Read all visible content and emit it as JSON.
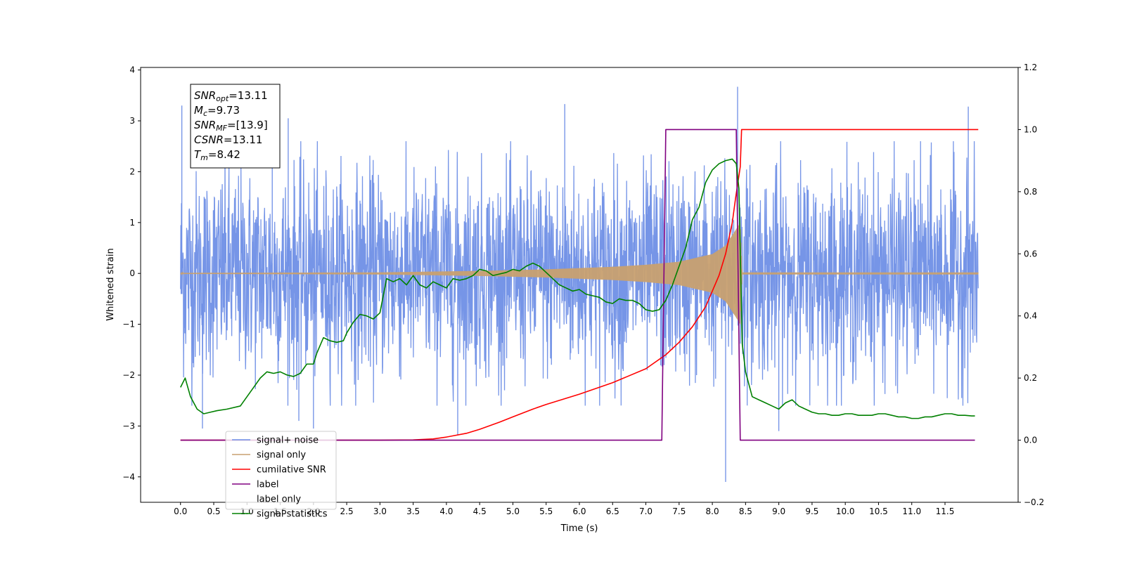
{
  "chart_data": {
    "type": "line",
    "xlabel": "Time (s)",
    "ylabel_left": "Whitened strain",
    "ylabel_right": "",
    "xlim": [
      -0.6,
      12.6
    ],
    "ylim_left": [
      -4.5,
      4.05
    ],
    "ylim_right": [
      -0.2,
      1.2
    ],
    "x_ticks": [
      0.0,
      0.5,
      1.0,
      1.5,
      2.0,
      2.5,
      3.0,
      3.5,
      4.0,
      4.5,
      5.0,
      5.5,
      6.0,
      6.5,
      7.0,
      7.5,
      8.0,
      8.5,
      9.0,
      9.5,
      10.0,
      10.5,
      11.0,
      11.5
    ],
    "x_tick_labels": [
      "0.0",
      "0.5",
      "1.0",
      "1.5",
      "2.0",
      "2.5",
      "3.0",
      "3.5",
      "4.0",
      "4.5",
      "5.0",
      "5.5",
      "6.0",
      "6.5",
      "7.0",
      "7.5",
      "8.0",
      "8.5",
      "9.0",
      "9.5",
      "10.0",
      "10.5",
      "11.0",
      "11.5"
    ],
    "y_left_ticks": [
      4,
      3,
      2,
      1,
      0,
      -1,
      -2,
      -3,
      -4
    ],
    "y_left_tick_labels": [
      "4",
      "3",
      "2",
      "1",
      "0",
      "−1",
      "−2",
      "−3",
      "−4"
    ],
    "y_right_ticks": [
      1.2,
      1.0,
      0.8,
      0.6,
      0.4,
      0.2,
      0.0,
      -0.2
    ],
    "y_right_tick_labels": [
      "1.2",
      "1.0",
      "0.8",
      "0.6",
      "0.4",
      "0.2",
      "0.0",
      "−0.2"
    ],
    "grid": false,
    "legend_position": "lower-left",
    "annotation": {
      "lines": [
        {
          "sym": "SNR",
          "sub": "opt",
          "value": "=13.11"
        },
        {
          "sym": "M",
          "sub": "c",
          "value": "=9.73"
        },
        {
          "sym": "SNR",
          "sub": "MF",
          "value": "=[13.9]"
        },
        {
          "sym": "CSNR",
          "sub": "",
          "value": "=13.11"
        },
        {
          "sym": "T",
          "sub": "m",
          "value": "=8.42"
        }
      ]
    },
    "series": [
      {
        "name": "signal+ noise",
        "axis": "left",
        "color": "#6f8fe6",
        "description_type": "noise-band",
        "x_range": [
          0.0,
          12.0
        ],
        "typical_envelope": [
          -1.6,
          1.6
        ],
        "peaks": [
          {
            "x": 0.02,
            "y": 3.3
          },
          {
            "x": 0.33,
            "y": -3.05
          },
          {
            "x": 1.38,
            "y": 3.06
          },
          {
            "x": 1.62,
            "y": 3.05
          },
          {
            "x": 1.78,
            "y": -2.9
          },
          {
            "x": 2.0,
            "y": -3.05
          },
          {
            "x": 4.17,
            "y": -3.17
          },
          {
            "x": 5.78,
            "y": 3.33
          },
          {
            "x": 8.2,
            "y": -4.1
          },
          {
            "x": 8.38,
            "y": 3.67
          },
          {
            "x": 9.0,
            "y": -3.1
          },
          {
            "x": 11.85,
            "y": 3.28
          }
        ]
      },
      {
        "name": "signal only",
        "axis": "left",
        "color": "#c8a070",
        "description_type": "chirp",
        "x_range": [
          0.0,
          12.0
        ],
        "merger_time": 8.42,
        "amplitude": [
          {
            "x": 0.0,
            "y": 0.01
          },
          {
            "x": 3.0,
            "y": 0.02
          },
          {
            "x": 4.5,
            "y": 0.05
          },
          {
            "x": 5.5,
            "y": 0.08
          },
          {
            "x": 6.5,
            "y": 0.13
          },
          {
            "x": 7.0,
            "y": 0.17
          },
          {
            "x": 7.5,
            "y": 0.23
          },
          {
            "x": 8.0,
            "y": 0.38
          },
          {
            "x": 8.2,
            "y": 0.55
          },
          {
            "x": 8.35,
            "y": 0.85
          },
          {
            "x": 8.42,
            "y": 1.0
          },
          {
            "x": 8.45,
            "y": 0.02
          },
          {
            "x": 12.0,
            "y": 0.02
          }
        ]
      },
      {
        "name": "cumilative SNR",
        "axis": "right",
        "color": "#ff0000",
        "x": [
          0.0,
          3.0,
          3.5,
          3.8,
          4.0,
          4.3,
          4.5,
          4.8,
          5.0,
          5.3,
          5.5,
          6.0,
          6.5,
          7.0,
          7.3,
          7.5,
          7.7,
          7.9,
          8.0,
          8.1,
          8.2,
          8.3,
          8.35,
          8.42,
          8.44,
          12.0
        ],
        "y": [
          0.0,
          0.0,
          0.001,
          0.004,
          0.01,
          0.022,
          0.035,
          0.058,
          0.075,
          0.1,
          0.115,
          0.148,
          0.185,
          0.23,
          0.275,
          0.315,
          0.365,
          0.43,
          0.48,
          0.53,
          0.6,
          0.7,
          0.78,
          0.88,
          1.0,
          1.0
        ]
      },
      {
        "name": "label",
        "axis": "right",
        "color": "#800080",
        "x": [
          0.0,
          7.24,
          7.3,
          8.36,
          8.42,
          11.95
        ],
        "y": [
          0.0,
          0.0,
          1.0,
          1.0,
          0.0,
          0.0
        ]
      },
      {
        "name": "label only",
        "axis": "right",
        "color": "#c8c8c8",
        "hidden": true,
        "x": [],
        "y": []
      },
      {
        "name": "signal statistics",
        "axis": "right",
        "color": "#008000",
        "x": [
          0.0,
          0.07,
          0.15,
          0.25,
          0.35,
          0.45,
          0.55,
          0.7,
          0.9,
          1.0,
          1.1,
          1.2,
          1.3,
          1.4,
          1.5,
          1.6,
          1.7,
          1.8,
          1.9,
          2.0,
          2.05,
          2.15,
          2.25,
          2.35,
          2.45,
          2.5,
          2.6,
          2.7,
          2.8,
          2.9,
          3.0,
          3.1,
          3.2,
          3.3,
          3.4,
          3.5,
          3.6,
          3.7,
          3.8,
          3.9,
          4.0,
          4.1,
          4.2,
          4.3,
          4.4,
          4.5,
          4.6,
          4.7,
          4.8,
          4.9,
          5.0,
          5.1,
          5.2,
          5.3,
          5.4,
          5.5,
          5.6,
          5.7,
          5.8,
          5.9,
          6.0,
          6.1,
          6.2,
          6.3,
          6.4,
          6.5,
          6.6,
          6.7,
          6.8,
          6.9,
          7.0,
          7.1,
          7.2,
          7.3,
          7.4,
          7.5,
          7.6,
          7.7,
          7.8,
          7.9,
          8.0,
          8.1,
          8.2,
          8.3,
          8.36,
          8.4,
          8.45,
          8.5,
          8.6,
          8.7,
          8.8,
          8.9,
          9.0,
          9.1,
          9.2,
          9.3,
          9.4,
          9.5,
          9.6,
          9.7,
          9.8,
          9.9,
          10.0,
          10.1,
          10.2,
          10.3,
          10.4,
          10.5,
          10.6,
          10.7,
          10.8,
          10.9,
          11.0,
          11.1,
          11.2,
          11.3,
          11.4,
          11.5,
          11.6,
          11.7,
          11.8,
          11.9,
          11.95
        ],
        "y": [
          0.17,
          0.2,
          0.14,
          0.1,
          0.085,
          0.09,
          0.095,
          0.1,
          0.11,
          0.14,
          0.17,
          0.2,
          0.22,
          0.215,
          0.22,
          0.21,
          0.205,
          0.215,
          0.245,
          0.245,
          0.28,
          0.33,
          0.32,
          0.315,
          0.32,
          0.345,
          0.38,
          0.405,
          0.4,
          0.39,
          0.41,
          0.52,
          0.51,
          0.52,
          0.5,
          0.53,
          0.5,
          0.49,
          0.51,
          0.5,
          0.49,
          0.52,
          0.515,
          0.52,
          0.53,
          0.55,
          0.545,
          0.53,
          0.535,
          0.54,
          0.55,
          0.545,
          0.56,
          0.57,
          0.56,
          0.54,
          0.52,
          0.5,
          0.49,
          0.48,
          0.485,
          0.47,
          0.465,
          0.46,
          0.445,
          0.44,
          0.455,
          0.45,
          0.45,
          0.44,
          0.42,
          0.415,
          0.42,
          0.45,
          0.5,
          0.56,
          0.62,
          0.71,
          0.75,
          0.83,
          0.87,
          0.89,
          0.9,
          0.905,
          0.89,
          0.81,
          0.31,
          0.22,
          0.14,
          0.13,
          0.12,
          0.11,
          0.1,
          0.12,
          0.13,
          0.11,
          0.1,
          0.09,
          0.085,
          0.085,
          0.08,
          0.08,
          0.085,
          0.085,
          0.08,
          0.08,
          0.08,
          0.085,
          0.085,
          0.08,
          0.075,
          0.075,
          0.07,
          0.07,
          0.075,
          0.075,
          0.08,
          0.085,
          0.085,
          0.08,
          0.08,
          0.078,
          0.078
        ]
      }
    ]
  }
}
